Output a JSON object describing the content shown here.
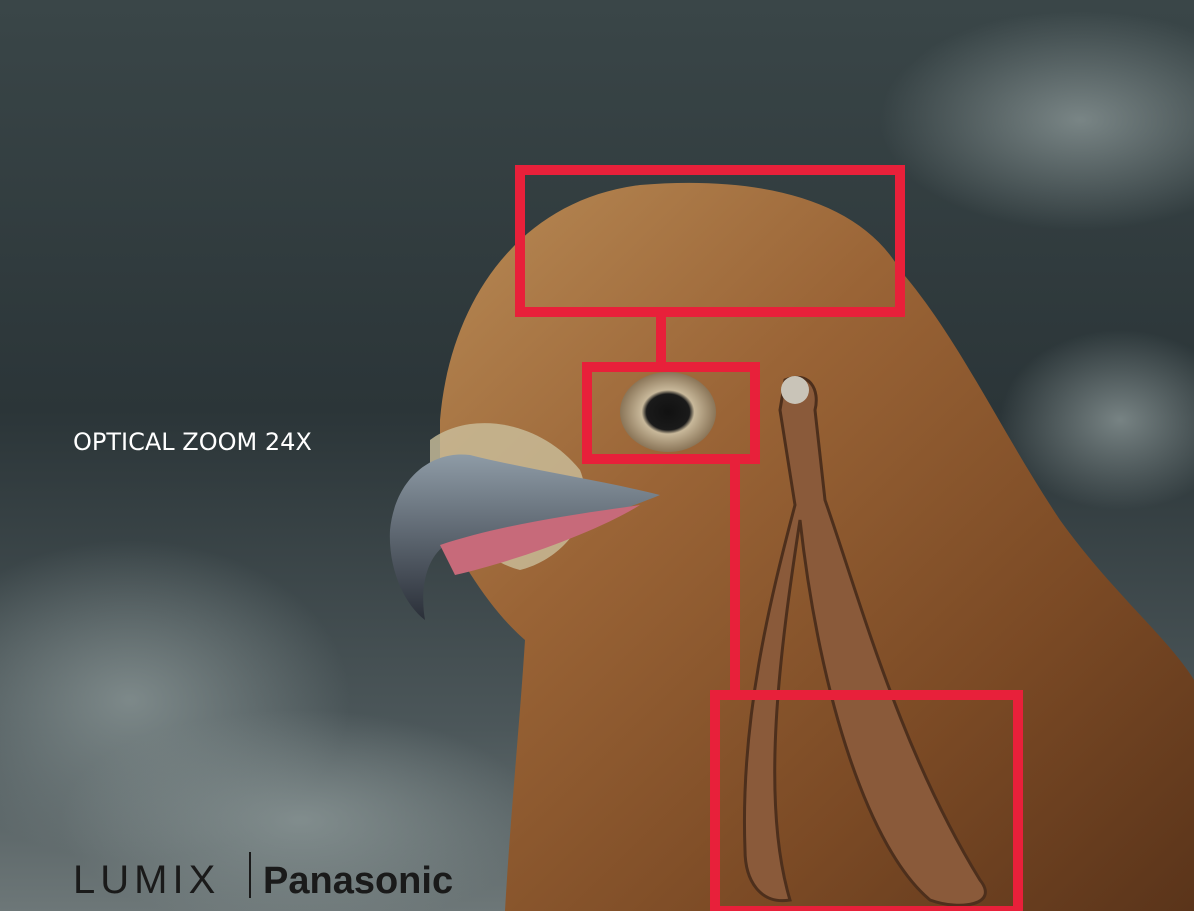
{
  "headline": "OPTICAL ZOOM 24X",
  "brand": {
    "product": "LUMIX",
    "company": "Panasonic"
  }
}
